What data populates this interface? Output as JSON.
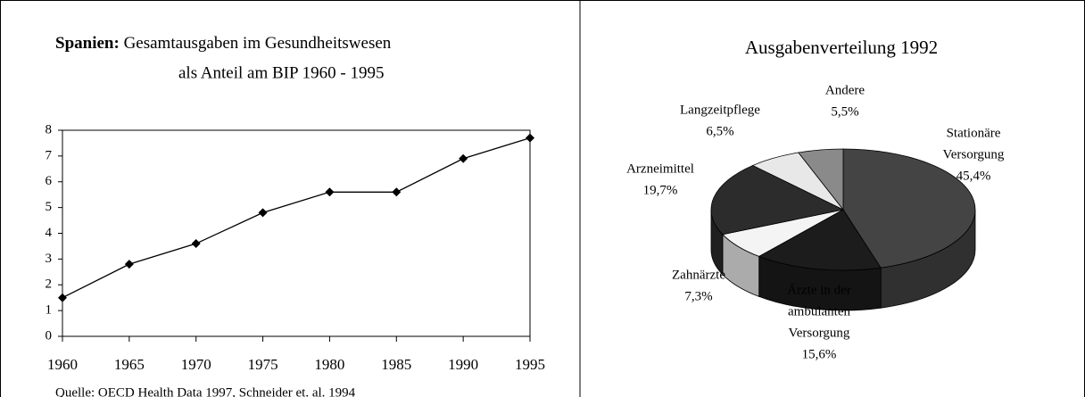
{
  "chart_data": [
    {
      "type": "line",
      "title_bold": "Spanien:",
      "title": "Gesamtausgaben im Gesundheitswesen",
      "subtitle": "als Anteil am BIP 1960 - 1995",
      "x": [
        1960,
        1965,
        1970,
        1975,
        1980,
        1985,
        1990,
        1995
      ],
      "values": [
        1.5,
        2.8,
        3.6,
        4.8,
        5.6,
        5.6,
        6.9,
        7.7
      ],
      "xlim": [
        1960,
        1995
      ],
      "xticks": [
        1960,
        1965,
        1970,
        1975,
        1980,
        1985,
        1990,
        1995
      ],
      "ylim": [
        0,
        8
      ],
      "yticks": [
        0,
        1,
        2,
        3,
        4,
        5,
        6,
        7,
        8
      ],
      "color": "#000000",
      "source": "Quelle: OECD Health Data 1997, Schneider et. al. 1994"
    },
    {
      "type": "pie",
      "title": "Ausgabenverteilung 1992",
      "categories": [
        [
          "Stationäre",
          "Versorgung"
        ],
        [
          "Ärzte in der",
          "ambulanten",
          "Versorgung"
        ],
        [
          "Zahnärzte"
        ],
        [
          "Arzneimittel"
        ],
        [
          "Langzeitpflege"
        ],
        [
          "Andere"
        ]
      ],
      "values": [
        45.4,
        15.6,
        7.3,
        19.7,
        6.5,
        5.5
      ],
      "value_labels": [
        "45,4%",
        "15,6%",
        "7,3%",
        "19,7%",
        "6,5%",
        "5,5%"
      ],
      "colors": [
        "#444444",
        "#1c1c1c",
        "#f4f4f4",
        "#2c2c2c",
        "#e8e8e8",
        "#8a8a8a"
      ]
    }
  ]
}
